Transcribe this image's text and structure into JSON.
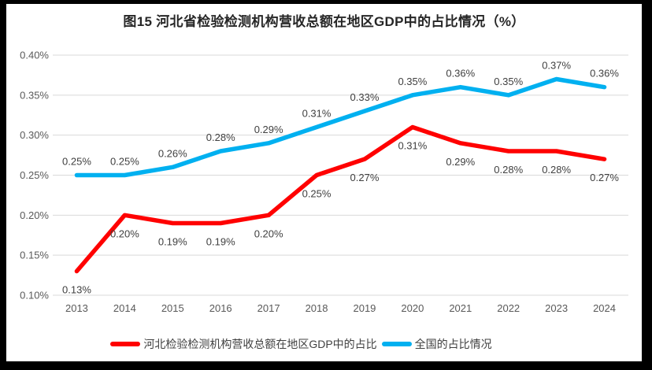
{
  "chart_data": {
    "type": "line",
    "title": "图15 河北省检验检测机构营收总额在地区GDP中的占比情况（%）",
    "categories": [
      "2013",
      "2014",
      "2015",
      "2016",
      "2017",
      "2018",
      "2019",
      "2020",
      "2021",
      "2022",
      "2023",
      "2024"
    ],
    "series": [
      {
        "name": "河北检验检测机构营收总额在地区GDP中的占比",
        "color": "#FF0000",
        "values": [
          0.13,
          0.2,
          0.19,
          0.19,
          0.2,
          0.25,
          0.27,
          0.31,
          0.29,
          0.28,
          0.28,
          0.27
        ],
        "point_labels": [
          "0.13%",
          "0.20%",
          "0.19%",
          "0.19%",
          "0.20%",
          "0.25%",
          "0.27%",
          "0.31%",
          "0.29%",
          "0.28%",
          "0.28%",
          "0.27%"
        ],
        "label_position": "below"
      },
      {
        "name": "全国的占比情况",
        "color": "#00B0F0",
        "values": [
          0.25,
          0.25,
          0.26,
          0.28,
          0.29,
          0.31,
          0.33,
          0.35,
          0.36,
          0.35,
          0.37,
          0.36
        ],
        "point_labels": [
          "0.25%",
          "0.25%",
          "0.26%",
          "0.28%",
          "0.29%",
          "0.31%",
          "0.33%",
          "0.35%",
          "0.36%",
          "0.35%",
          "0.37%",
          "0.36%"
        ],
        "label_position": "above"
      }
    ],
    "xlabel": "",
    "ylabel": "",
    "ylim": [
      0.1,
      0.4
    ],
    "ytick_step": 0.05,
    "ytick_labels": [
      "0.10%",
      "0.15%",
      "0.20%",
      "0.25%",
      "0.30%",
      "0.35%",
      "0.40%"
    ],
    "grid": true,
    "legend_position": "bottom"
  },
  "colors": {
    "frame_border": "#000000",
    "canvas_background": "#FFFFFF",
    "gridline": "#D9D9D9",
    "tick_text": "#595959",
    "data_label_text": "#404040",
    "title_text": "#262626",
    "series_hebei": "#FF0000",
    "series_national": "#00B0F0"
  }
}
